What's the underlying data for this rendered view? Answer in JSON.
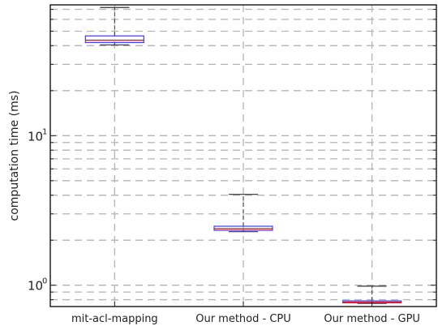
{
  "chart_data": {
    "type": "box",
    "title": "",
    "xlabel": "",
    "ylabel": "computation time (ms)",
    "yscale": "log",
    "ylim": [
      0.72,
      75
    ],
    "grid": true,
    "categories": [
      "mit-acl-mapping",
      "Our method - CPU",
      "Our method - GPU"
    ],
    "ytick_labels": [
      {
        "value": 1,
        "base": "10",
        "exp": "0"
      },
      {
        "value": 10,
        "base": "10",
        "exp": "1"
      }
    ],
    "boxes": [
      {
        "whisker_low": 40.5,
        "q1": 42.0,
        "median": 43.5,
        "q3": 46.5,
        "whisker_high": 72.0
      },
      {
        "whisker_low": 2.28,
        "q1": 2.33,
        "median": 2.39,
        "q3": 2.48,
        "whisker_high": 4.05
      },
      {
        "whisker_low": 0.755,
        "q1": 0.762,
        "median": 0.77,
        "q3": 0.785,
        "whisker_high": 0.985
      }
    ],
    "colors": {
      "box": "#3b3bf0",
      "median": "#e0203a",
      "whisker": "#333333",
      "grid": "#b4b4b4"
    }
  }
}
